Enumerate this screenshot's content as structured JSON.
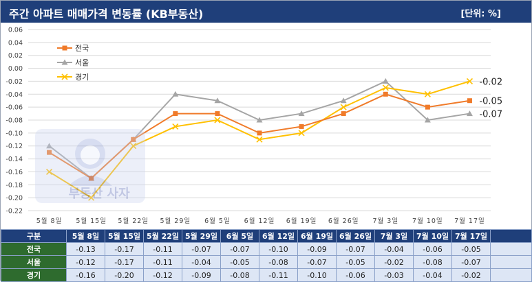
{
  "header": {
    "title": "주간 아파트 매매가격 변동률 (KB부동산)",
    "unit": "[단위: %]"
  },
  "watermark_text": "부동산 사자",
  "colors": {
    "header_bg": "#1f3f7a",
    "row_label_bg": "#2e6b2e",
    "cell_bg": "#dde6f5",
    "series_jeonguk": "#f07b2a",
    "series_seoul": "#a5a5a5",
    "series_gyeonggi": "#ffc000"
  },
  "chart_data": {
    "type": "line",
    "categories": [
      "5월 8일",
      "5월 15일",
      "5월 22일",
      "5월 29일",
      "6월 5일",
      "6월 12일",
      "6월 19일",
      "6월 26일",
      "7월 3일",
      "7월 10일",
      "7월 17일"
    ],
    "series": [
      {
        "name": "전국",
        "values": [
          -0.13,
          -0.17,
          -0.11,
          -0.07,
          -0.07,
          -0.1,
          -0.09,
          -0.07,
          -0.04,
          -0.06,
          -0.05
        ],
        "marker": "square"
      },
      {
        "name": "서울",
        "values": [
          -0.12,
          -0.17,
          -0.11,
          -0.04,
          -0.05,
          -0.08,
          -0.07,
          -0.05,
          -0.02,
          -0.08,
          -0.07
        ],
        "marker": "triangle"
      },
      {
        "name": "경기",
        "values": [
          -0.16,
          -0.2,
          -0.12,
          -0.09,
          -0.08,
          -0.11,
          -0.1,
          -0.06,
          -0.03,
          -0.04,
          -0.02
        ],
        "marker": "x"
      }
    ],
    "ylim": [
      -0.22,
      0.06
    ],
    "yticks": [
      "0.06",
      "0.04",
      "0.02",
      "0.00",
      "-0.02",
      "-0.04",
      "-0.06",
      "-0.08",
      "-0.10",
      "-0.12",
      "-0.14",
      "-0.16",
      "-0.18",
      "-0.20",
      "-0.22"
    ],
    "end_labels": [
      {
        "series": "경기",
        "text": "-0.02"
      },
      {
        "series": "전국",
        "text": "-0.05"
      },
      {
        "series": "서울",
        "text": "-0.07"
      }
    ],
    "legend_position": "top-left",
    "grid": "horizontal"
  },
  "table": {
    "header_label": "구분",
    "dates": [
      "5월 8일",
      "5월 15일",
      "5월 22일",
      "5월 29일",
      "6월 5일",
      "6월 12일",
      "6월 19일",
      "6월 26일",
      "7월 3일",
      "7월 10일",
      "7월 17일"
    ],
    "rows": [
      {
        "label": "전국",
        "values": [
          "-0.13",
          "-0.17",
          "-0.11",
          "-0.07",
          "-0.07",
          "-0.10",
          "-0.09",
          "-0.07",
          "-0.04",
          "-0.06",
          "-0.05"
        ]
      },
      {
        "label": "서울",
        "values": [
          "-0.12",
          "-0.17",
          "-0.11",
          "-0.04",
          "-0.05",
          "-0.08",
          "-0.07",
          "-0.05",
          "-0.02",
          "-0.08",
          "-0.07"
        ]
      },
      {
        "label": "경기",
        "values": [
          "-0.16",
          "-0.20",
          "-0.12",
          "-0.09",
          "-0.08",
          "-0.11",
          "-0.10",
          "-0.06",
          "-0.03",
          "-0.04",
          "-0.02"
        ]
      }
    ]
  }
}
